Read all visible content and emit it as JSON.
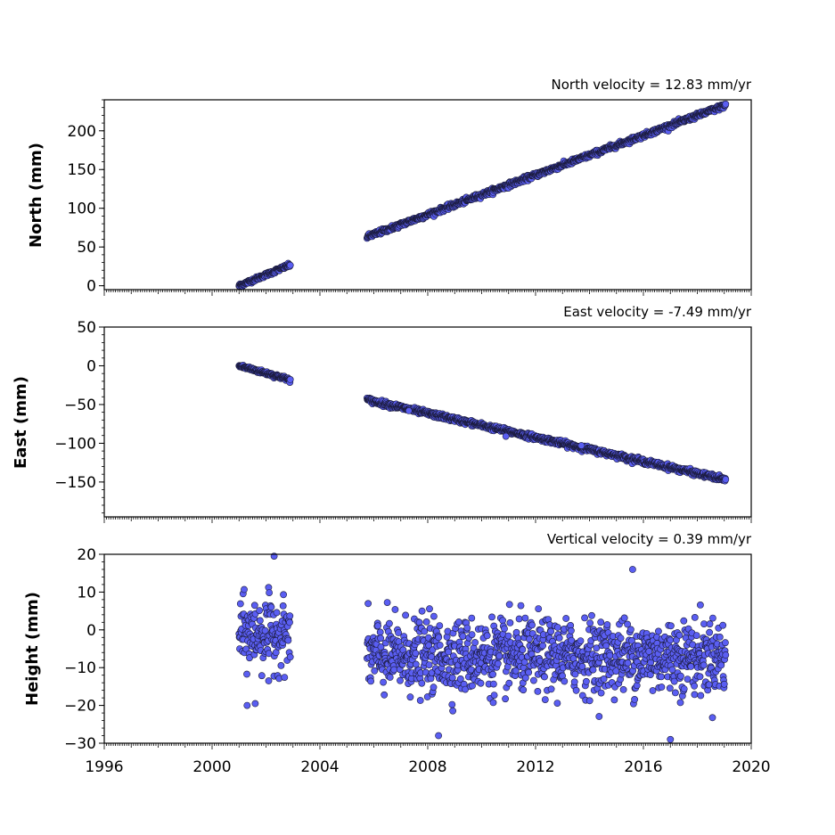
{
  "chart_data": [
    {
      "type": "scatter",
      "title": "North velocity = 12.83 mm/yr",
      "xlabel": "",
      "ylabel": "North (mm)",
      "xlim": [
        1996,
        2020
      ],
      "ylim": [
        -5,
        240
      ],
      "yticks": [
        0,
        50,
        100,
        150,
        200
      ],
      "grid": false,
      "segments": [
        {
          "x_start": 2001.0,
          "x_end": 2002.9,
          "y_start": 0,
          "y_end": 27,
          "scatter": 1.2
        },
        {
          "x_start": 2005.75,
          "x_end": 2019.05,
          "y_start": 63,
          "y_end": 233,
          "scatter": 1.5
        }
      ],
      "outliers": []
    },
    {
      "type": "scatter",
      "title": "East velocity = -7.49 mm/yr",
      "xlabel": "",
      "ylabel": "East (mm)",
      "xlim": [
        1996,
        2020
      ],
      "ylim": [
        -195,
        50
      ],
      "yticks": [
        -150,
        -100,
        -50,
        0,
        50
      ],
      "grid": false,
      "segments": [
        {
          "x_start": 2001.0,
          "x_end": 2002.9,
          "y_start": 0,
          "y_end": -18,
          "scatter": 1.2
        },
        {
          "x_start": 2005.75,
          "x_end": 2019.05,
          "y_start": -44,
          "y_end": -147,
          "scatter": 1.6
        }
      ],
      "outliers": [
        {
          "x": 2010.9,
          "y": -91
        },
        {
          "x": 2013.7,
          "y": -103
        },
        {
          "x": 2007.3,
          "y": -58
        }
      ]
    },
    {
      "type": "scatter",
      "title": "Vertical velocity = 0.39 mm/yr",
      "xlabel": "",
      "ylabel": "Height (mm)",
      "xlim": [
        1996,
        2020
      ],
      "ylim": [
        -30,
        20
      ],
      "yticks": [
        -30,
        -20,
        -10,
        0,
        10,
        20
      ],
      "xticks": [
        1996,
        2000,
        2004,
        2008,
        2012,
        2016,
        2020
      ],
      "grid": false,
      "segments": [
        {
          "x_start": 2001.0,
          "x_end": 2002.9,
          "y_mean": -1,
          "spread": 4.5
        },
        {
          "x_start": 2005.75,
          "x_end": 2019.05,
          "y_mean": -7,
          "spread": 4.8
        }
      ],
      "outliers": [
        {
          "x": 2002.3,
          "y": 19.5
        },
        {
          "x": 2015.6,
          "y": 16
        },
        {
          "x": 2008.4,
          "y": -28
        },
        {
          "x": 2017.0,
          "y": -29
        },
        {
          "x": 2001.3,
          "y": -20
        },
        {
          "x": 2001.6,
          "y": -19.5
        },
        {
          "x": 2002.1,
          "y": -13.5
        }
      ]
    }
  ]
}
